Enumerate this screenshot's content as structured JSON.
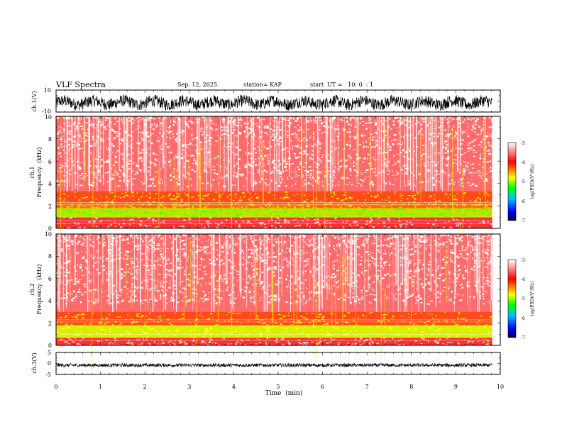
{
  "header": {
    "title": "VLF Spectra",
    "date": "Sep. 12, 2025",
    "station": "station= KAP",
    "start": "start  UT =   10: 0  : 1"
  },
  "chart_data": [
    {
      "name": "ch1-voltage",
      "type": "line",
      "ylabel": "ch.1(V)",
      "ylim": [
        -10,
        10
      ],
      "yticks": [
        "10",
        "-10"
      ],
      "xlim": [
        0,
        10
      ],
      "color": "#000000"
    },
    {
      "name": "ch1-spectrogram",
      "type": "heatmap",
      "ylabel_line1": "ch.1",
      "ylabel_line2": "Frequency  (kHz)",
      "ylim": [
        0,
        10
      ],
      "yticks": [
        "0",
        "2",
        "4",
        "6",
        "8",
        "10"
      ],
      "xlim": [
        0,
        10
      ],
      "colorbar": {
        "label": "log(PSD)(V²/Hz)",
        "range": [
          -7,
          -3
        ],
        "ticks": [
          "-3",
          "-4",
          "-5",
          "-6",
          "-7"
        ],
        "colors": [
          "#000040",
          "#0000ff",
          "#00c0ff",
          "#00ff00",
          "#ffff00",
          "#ff0000",
          "#ffffff"
        ]
      }
    },
    {
      "name": "ch2-spectrogram",
      "type": "heatmap",
      "ylabel_line1": "ch.2",
      "ylabel_line2": "Frequency  (kHz)",
      "ylim": [
        0,
        10
      ],
      "yticks": [
        "0",
        "2",
        "4",
        "6",
        "8",
        "10"
      ],
      "xlim": [
        0,
        10
      ],
      "colorbar": {
        "label": "log(PSD)(V²/Hz)",
        "range": [
          -7,
          -3
        ],
        "ticks": [
          "-3",
          "-4",
          "-5",
          "-6",
          "-7"
        ],
        "colors": [
          "#000040",
          "#0000ff",
          "#00c0ff",
          "#00ff00",
          "#ffff00",
          "#ff0000",
          "#ffffff"
        ]
      }
    },
    {
      "name": "ch3-voltage",
      "type": "line",
      "ylabel": "ch.3(V)",
      "ylim": [
        -5,
        5
      ],
      "yticks": [
        "5",
        "0",
        "-5"
      ],
      "xlim": [
        0,
        10
      ],
      "xlabel": "Time  (min)",
      "xticks": [
        "0",
        "1",
        "2",
        "3",
        "4",
        "5",
        "6",
        "7",
        "8",
        "9",
        "10"
      ],
      "color": "#000000"
    }
  ]
}
